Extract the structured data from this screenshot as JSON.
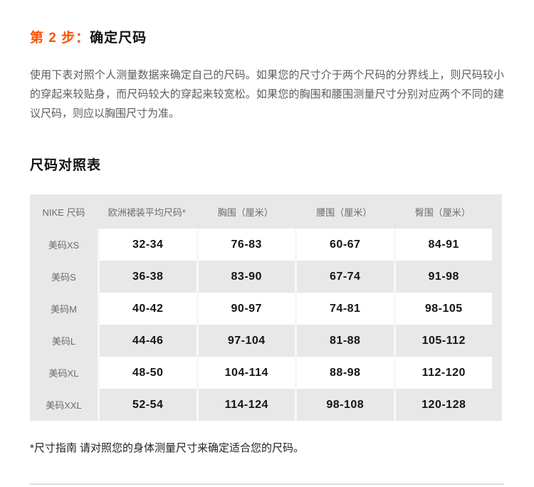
{
  "page": {
    "step_prefix": "第 2 步：",
    "step_title": "确定尺码",
    "intro": "使用下表对照个人测量数据来确定自己的尺码。如果您的尺寸介于两个尺码的分界线上，则尺码较小的穿起来较贴身，而尺码较大的穿起来较宽松。如果您的胸围和腰围测量尺寸分别对应两个不同的建议尺码，则应以胸围尺寸为准。",
    "table_title": "尺码对照表",
    "footnote": "*尺寸指南 请对照您的身体测量尺寸来确定适合您的尺码。"
  },
  "colors": {
    "accent_orange": "#fa5400",
    "table_gray": "#e8e8e8",
    "body_text": "#5d5d5d"
  },
  "size_table": {
    "columns": [
      "NIKE 尺码",
      "欧洲裙装平均尺码*",
      "胸围（厘米）",
      "腰围（厘米）",
      "臀围（厘米）"
    ],
    "rows": [
      {
        "label": "美码XS",
        "values": [
          "32-34",
          "76-83",
          "60-67",
          "84-91"
        ]
      },
      {
        "label": "美码S",
        "values": [
          "36-38",
          "83-90",
          "67-74",
          "91-98"
        ]
      },
      {
        "label": "美码M",
        "values": [
          "40-42",
          "90-97",
          "74-81",
          "98-105"
        ]
      },
      {
        "label": "美码L",
        "values": [
          "44-46",
          "97-104",
          "81-88",
          "105-112"
        ]
      },
      {
        "label": "美码XL",
        "values": [
          "48-50",
          "104-114",
          "88-98",
          "112-120"
        ]
      },
      {
        "label": "美码XXL",
        "values": [
          "52-54",
          "114-124",
          "98-108",
          "120-128"
        ]
      }
    ]
  }
}
